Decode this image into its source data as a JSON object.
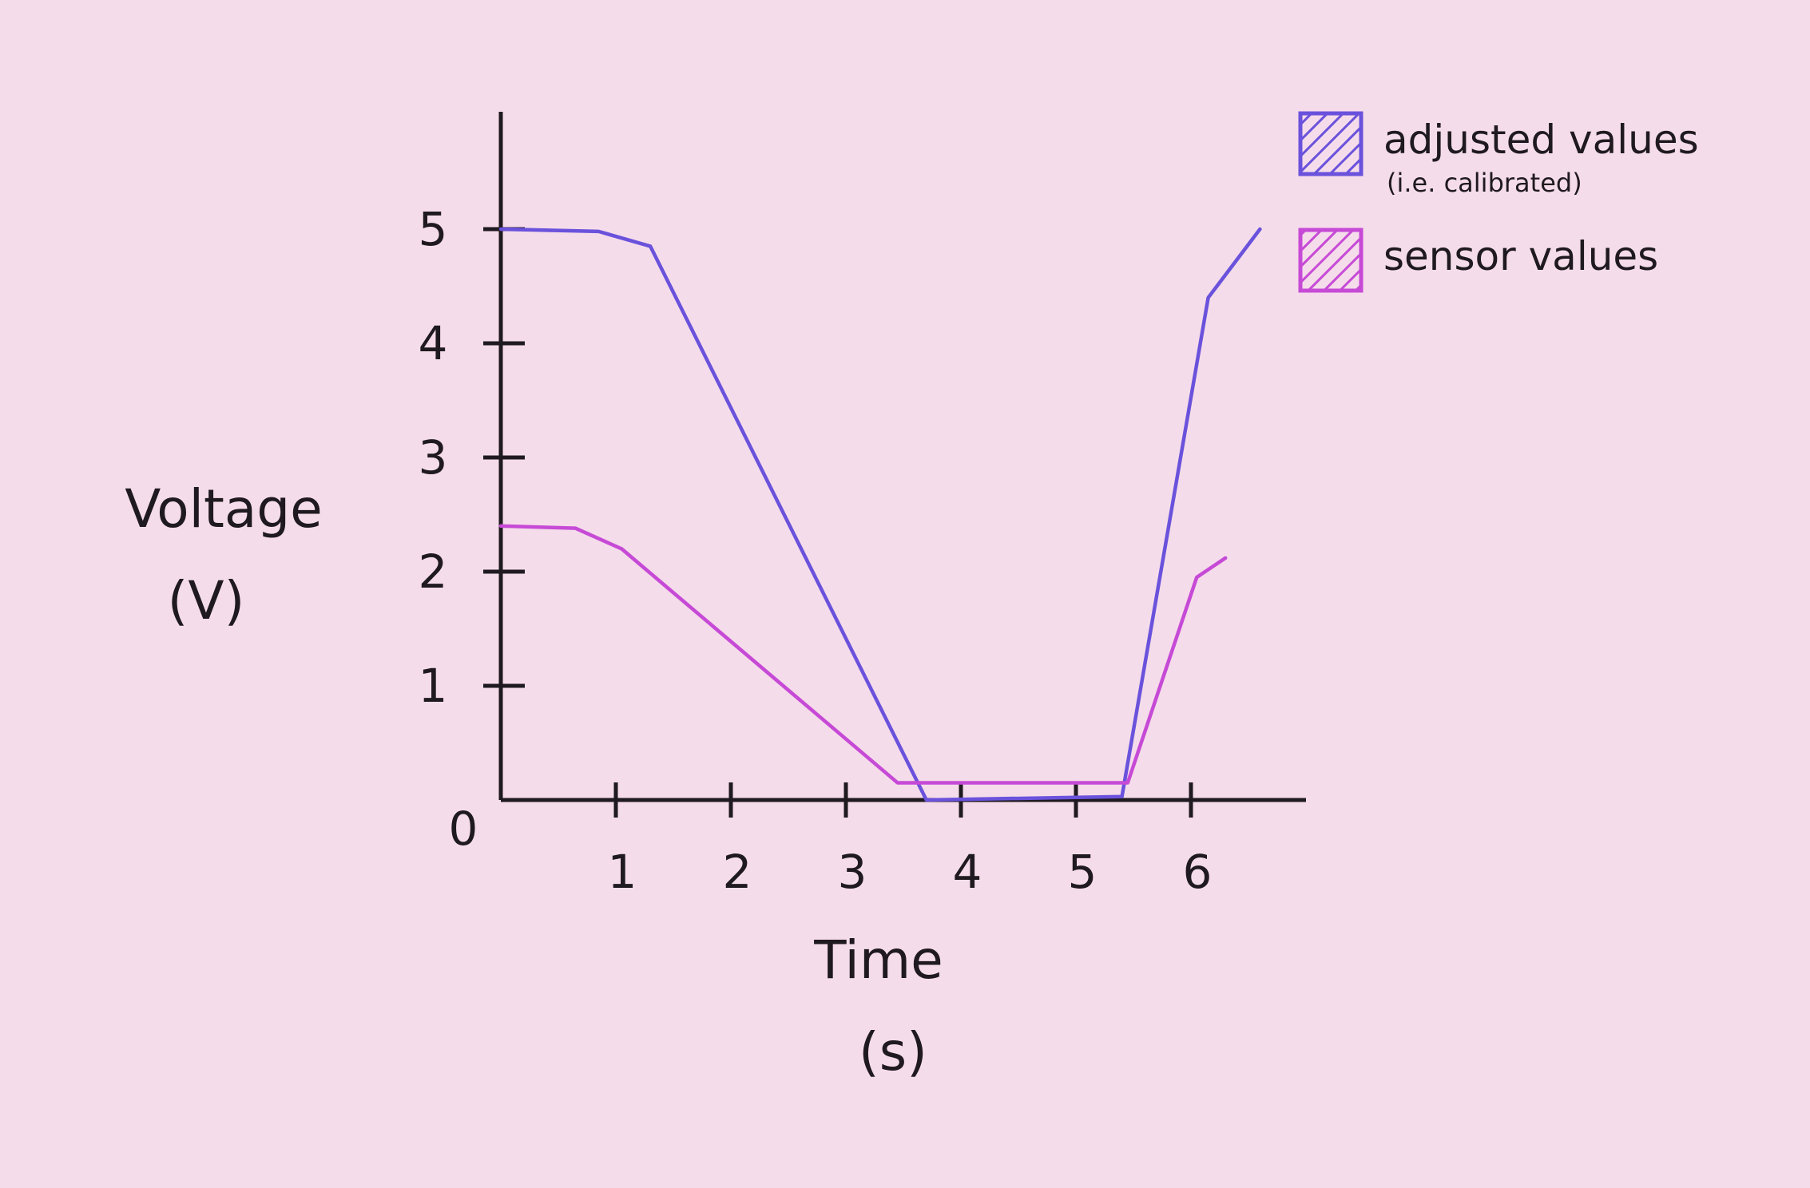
{
  "chart_data": {
    "type": "line",
    "title": "",
    "xlabel": "Time",
    "xlabel_unit": "(s)",
    "ylabel": "Voltage",
    "ylabel_unit": "(V)",
    "xlim": [
      0,
      7
    ],
    "ylim": [
      0,
      6
    ],
    "x_ticks": [
      "1",
      "2",
      "3",
      "4",
      "5",
      "6"
    ],
    "y_ticks": [
      "1",
      "2",
      "3",
      "4",
      "5"
    ],
    "origin_label": "0",
    "grid": false,
    "legend_position": "top-right",
    "series": [
      {
        "name": "adjusted values",
        "note": "(i.e. calibrated)",
        "color": "#6a52dc",
        "points": [
          [
            0,
            5.0
          ],
          [
            0.85,
            4.98
          ],
          [
            1.3,
            4.85
          ],
          [
            3.7,
            0.0
          ],
          [
            5.4,
            0.03
          ],
          [
            6.15,
            4.4
          ],
          [
            6.6,
            5.0
          ]
        ]
      },
      {
        "name": "sensor values",
        "note": "",
        "color": "#c64ad6",
        "points": [
          [
            0,
            2.4
          ],
          [
            0.65,
            2.38
          ],
          [
            1.05,
            2.2
          ],
          [
            3.45,
            0.15
          ],
          [
            5.45,
            0.15
          ],
          [
            6.05,
            1.95
          ],
          [
            6.3,
            2.12
          ]
        ]
      }
    ]
  }
}
